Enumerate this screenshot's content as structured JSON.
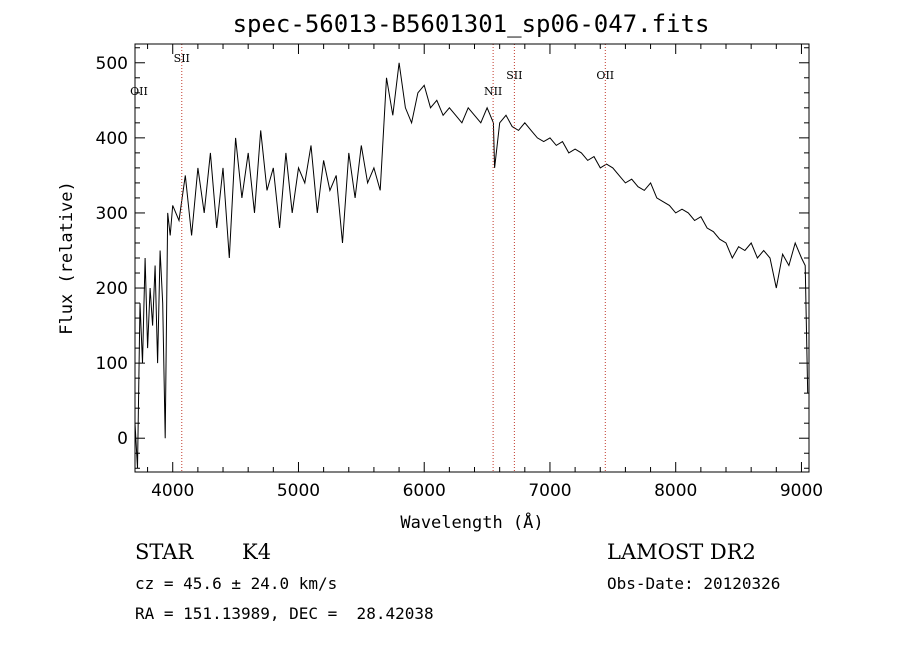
{
  "chart_data": {
    "type": "line",
    "title": "spec-56013-B5601301_sp06-047.fits",
    "xlabel": "Wavelength (Å)",
    "ylabel": "Flux (relative)",
    "xlim": [
      3700,
      9060
    ],
    "ylim": [
      -45,
      525
    ],
    "xticks": [
      4000,
      5000,
      6000,
      7000,
      8000,
      9000
    ],
    "yticks": [
      0,
      100,
      200,
      300,
      400,
      500
    ],
    "grid": false,
    "series": [
      {
        "x": [
          3700,
          3720,
          3740,
          3760,
          3780,
          3800,
          3820,
          3840,
          3860,
          3880,
          3900,
          3920,
          3940,
          3960,
          3980,
          4000,
          4050,
          4100,
          4150,
          4200,
          4250,
          4300,
          4350,
          4400,
          4450,
          4500,
          4550,
          4600,
          4650,
          4700,
          4750,
          4800,
          4850,
          4900,
          4950,
          5000,
          5050,
          5100,
          5150,
          5200,
          5250,
          5300,
          5350,
          5400,
          5450,
          5500,
          5550,
          5600,
          5650,
          5700,
          5750,
          5800,
          5850,
          5900,
          5950,
          6000,
          6050,
          6100,
          6150,
          6200,
          6250,
          6300,
          6350,
          6400,
          6450,
          6500,
          6550,
          6560,
          6600,
          6650,
          6700,
          6750,
          6800,
          6850,
          6900,
          6950,
          7000,
          7050,
          7100,
          7150,
          7200,
          7250,
          7300,
          7350,
          7400,
          7450,
          7500,
          7550,
          7600,
          7650,
          7700,
          7750,
          7800,
          7850,
          7900,
          7950,
          8000,
          8050,
          8100,
          8150,
          8200,
          8250,
          8300,
          8350,
          8400,
          8450,
          8500,
          8550,
          8600,
          8650,
          8700,
          8750,
          8800,
          8850,
          8900,
          8950,
          9000,
          9030,
          9050
        ],
        "y": [
          20,
          -40,
          180,
          100,
          240,
          120,
          200,
          150,
          230,
          100,
          250,
          180,
          0,
          300,
          270,
          310,
          290,
          350,
          270,
          360,
          300,
          380,
          280,
          360,
          240,
          400,
          320,
          380,
          300,
          410,
          330,
          360,
          280,
          380,
          300,
          360,
          340,
          390,
          300,
          370,
          330,
          350,
          260,
          380,
          320,
          390,
          340,
          360,
          330,
          480,
          430,
          500,
          440,
          420,
          460,
          470,
          440,
          450,
          430,
          440,
          430,
          420,
          440,
          430,
          420,
          440,
          420,
          360,
          420,
          430,
          415,
          410,
          420,
          410,
          400,
          395,
          400,
          390,
          395,
          380,
          385,
          380,
          370,
          375,
          360,
          365,
          360,
          350,
          340,
          345,
          335,
          330,
          340,
          320,
          315,
          310,
          300,
          305,
          300,
          290,
          295,
          280,
          275,
          265,
          260,
          240,
          255,
          250,
          260,
          240,
          250,
          240,
          200,
          245,
          230,
          260,
          240,
          230,
          60
        ]
      }
    ],
    "line_markers": [
      {
        "label": "OII",
        "x": 3727,
        "dotted_line": false,
        "label_row": "low"
      },
      {
        "label": "SII",
        "x": 4072,
        "dotted_line": true,
        "label_row": "high"
      },
      {
        "label": "NII",
        "x": 6548,
        "dotted_line": true,
        "label_row": "low"
      },
      {
        "label": "SII",
        "x": 6717,
        "dotted_line": true,
        "label_row": "mid"
      },
      {
        "label": "OII",
        "x": 7440,
        "dotted_line": true,
        "label_row": "mid"
      }
    ],
    "marker_color": "#c0392b"
  },
  "info": {
    "object_class": "STAR",
    "subclass": "K4",
    "survey": "LAMOST DR2",
    "cz": "cz = 45.6 ± 24.0 km/s",
    "obs_date": "Obs-Date: 20120326",
    "coords": "RA = 151.13989, DEC =  28.42038"
  }
}
